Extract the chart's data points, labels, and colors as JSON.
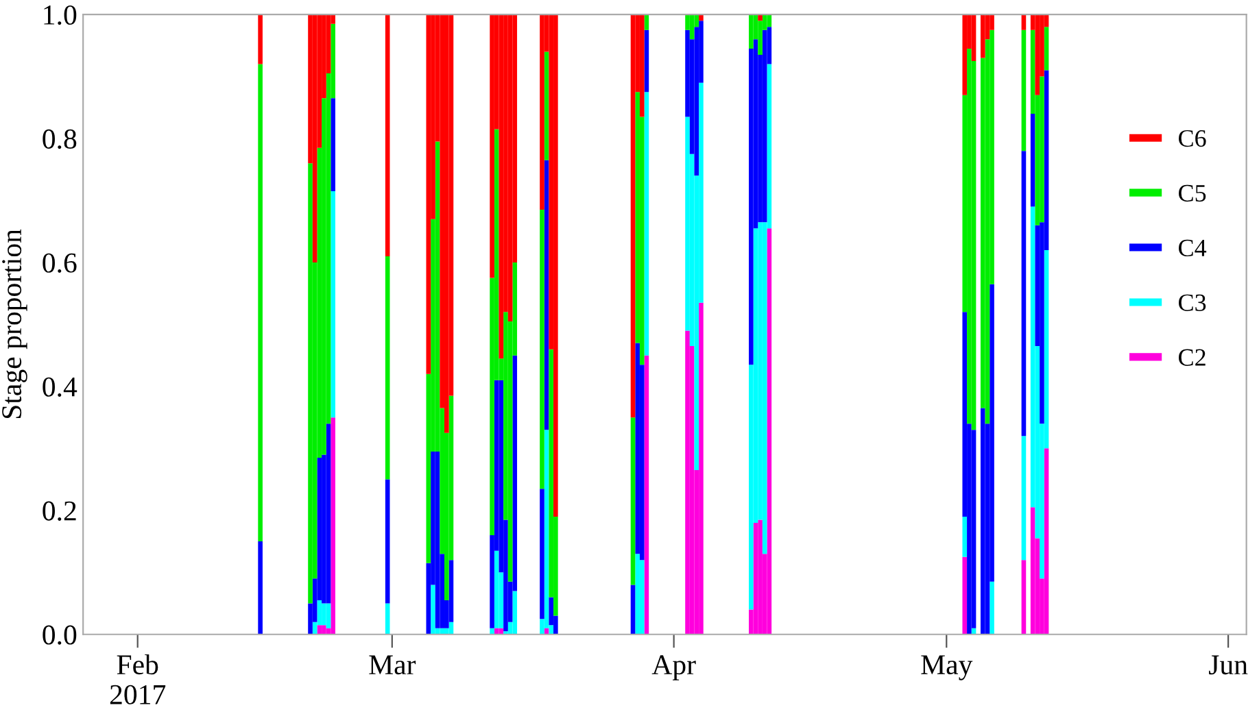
{
  "chart_data": {
    "type": "bar",
    "stacked": true,
    "ylabel": "Stage proportion",
    "x": [
      "2017-02-14T12:00",
      "2017-02-20T00:00",
      "2017-02-20T12:00",
      "2017-02-21T00:00",
      "2017-02-21T12:00",
      "2017-02-22T00:00",
      "2017-02-22T12:00",
      "2017-02-28T12:00",
      "2017-03-05T00:00",
      "2017-03-05T12:00",
      "2017-03-06T00:00",
      "2017-03-06T12:00",
      "2017-03-07T00:00",
      "2017-03-07T12:00",
      "2017-03-12T00:00",
      "2017-03-12T12:00",
      "2017-03-13T00:00",
      "2017-03-13T12:00",
      "2017-03-14T00:00",
      "2017-03-14T12:00",
      "2017-03-17T12:00",
      "2017-03-18T00:00",
      "2017-03-18T12:00",
      "2017-03-19T00:00",
      "2017-03-27T12:00",
      "2017-03-28T00:00",
      "2017-03-28T12:00",
      "2017-03-29T00:00",
      "2017-04-02T12:00",
      "2017-04-03T00:00",
      "2017-04-03T12:00",
      "2017-04-04T00:00",
      "2017-04-09T12:00",
      "2017-04-10T00:00",
      "2017-04-10T12:00",
      "2017-04-11T00:00",
      "2017-04-11T12:00",
      "2017-05-03T00:00",
      "2017-05-03T12:00",
      "2017-05-04T00:00",
      "2017-05-05T00:00",
      "2017-05-05T12:00",
      "2017-05-06T00:00",
      "2017-05-09T12:00",
      "2017-05-10T12:00",
      "2017-05-11T00:00",
      "2017-05-11T12:00",
      "2017-05-12T00:00"
    ],
    "series": [
      {
        "name": "C2",
        "color": "#ff00dd",
        "values": [
          0,
          0,
          0,
          0.015,
          0.015,
          0.01,
          0.35,
          0,
          0,
          0,
          0,
          0,
          0,
          0,
          0,
          0.01,
          0.01,
          0,
          0,
          0,
          0,
          0.01,
          0,
          0,
          0,
          0,
          0,
          0.45,
          0.49,
          0.465,
          0.265,
          0.535,
          0.04,
          0.18,
          0.185,
          0.13,
          0.655,
          0.125,
          0,
          0,
          0,
          0,
          0,
          0.12,
          0.205,
          0.155,
          0.09,
          0.3
        ]
      },
      {
        "name": "C3",
        "color": "#00ffff",
        "values": [
          0,
          0,
          0.02,
          0.04,
          0.035,
          0.04,
          0.365,
          0.05,
          0,
          0.08,
          0.01,
          0.01,
          0.01,
          0.02,
          0.01,
          0.125,
          0.09,
          0.005,
          0.02,
          0.07,
          0.025,
          0.32,
          0.015,
          0,
          0,
          0.13,
          0.12,
          0.425,
          0.345,
          0.31,
          0.475,
          0.355,
          0.395,
          0.475,
          0.48,
          0.535,
          0.265,
          0.065,
          0,
          0.01,
          0,
          0,
          0.085,
          0.2,
          0.485,
          0.31,
          0.25,
          0.32
        ]
      },
      {
        "name": "C4",
        "color": "#0000ff",
        "values": [
          0.15,
          0.05,
          0.07,
          0.23,
          0.24,
          0.29,
          0.15,
          0.2,
          0.115,
          0.215,
          0.285,
          0.12,
          0.045,
          0.1,
          0.15,
          0.275,
          0.31,
          0.18,
          0.065,
          0.38,
          0.21,
          0.435,
          0.045,
          0.03,
          0.08,
          0.34,
          0.315,
          0.1,
          0.14,
          0.185,
          0.24,
          0.1,
          0.51,
          0.305,
          0.27,
          0.31,
          0.06,
          0.33,
          0.34,
          0.32,
          0.365,
          0.34,
          0.48,
          0.46,
          0.15,
          0.195,
          0.325,
          0.29
        ]
      },
      {
        "name": "C5",
        "color": "#00ee00",
        "values": [
          0.77,
          0.71,
          0.51,
          0.5,
          0.575,
          0.565,
          0.12,
          0.36,
          0.305,
          0.375,
          0.5,
          0.235,
          0.27,
          0.265,
          0.415,
          0.405,
          0.035,
          0.335,
          0.42,
          0.15,
          0.45,
          0.175,
          0.4,
          0.16,
          0.27,
          0.405,
          0.4,
          0.025,
          0.025,
          0.04,
          0.02,
          0,
          0.055,
          0.04,
          0.055,
          0.025,
          0.02,
          0.35,
          0.605,
          0.595,
          0.565,
          0.62,
          0.41,
          0.195,
          0.135,
          0.21,
          0.235,
          0.07
        ]
      },
      {
        "name": "C6",
        "color": "#ff0000",
        "values": [
          0.08,
          0.24,
          0.4,
          0.215,
          0.135,
          0.095,
          0.015,
          0.39,
          0.58,
          0.33,
          0.205,
          0.635,
          0.675,
          0.615,
          0.425,
          0.185,
          0.555,
          0.48,
          0.495,
          0.4,
          0.315,
          0.06,
          0.54,
          0.81,
          0.65,
          0.125,
          0.165,
          0,
          0,
          0,
          0,
          0.01,
          0,
          0,
          0.01,
          0,
          0,
          0.13,
          0.055,
          0.075,
          0.07,
          0.04,
          0.025,
          0.025,
          0.025,
          0.13,
          0.1,
          0.02
        ]
      }
    ],
    "xlim": [
      "2017-01-26",
      "2017-06-03"
    ],
    "xticks": [
      {
        "value": "2017-02-01",
        "label": "Feb\n2017"
      },
      {
        "value": "2017-03-01",
        "label": "Mar"
      },
      {
        "value": "2017-04-01",
        "label": "Apr"
      },
      {
        "value": "2017-05-01",
        "label": "May"
      },
      {
        "value": "2017-06-01",
        "label": "Jun"
      }
    ],
    "ylim": [
      0,
      1
    ],
    "yticks": [
      {
        "value": 0,
        "label": "0.0"
      },
      {
        "value": 0.2,
        "label": "0.2"
      },
      {
        "value": 0.4,
        "label": "0.4"
      },
      {
        "value": 0.6,
        "label": "0.6"
      },
      {
        "value": 0.8,
        "label": "0.8"
      },
      {
        "value": 1,
        "label": "1.0"
      }
    ],
    "legend": "right",
    "grid": false
  }
}
